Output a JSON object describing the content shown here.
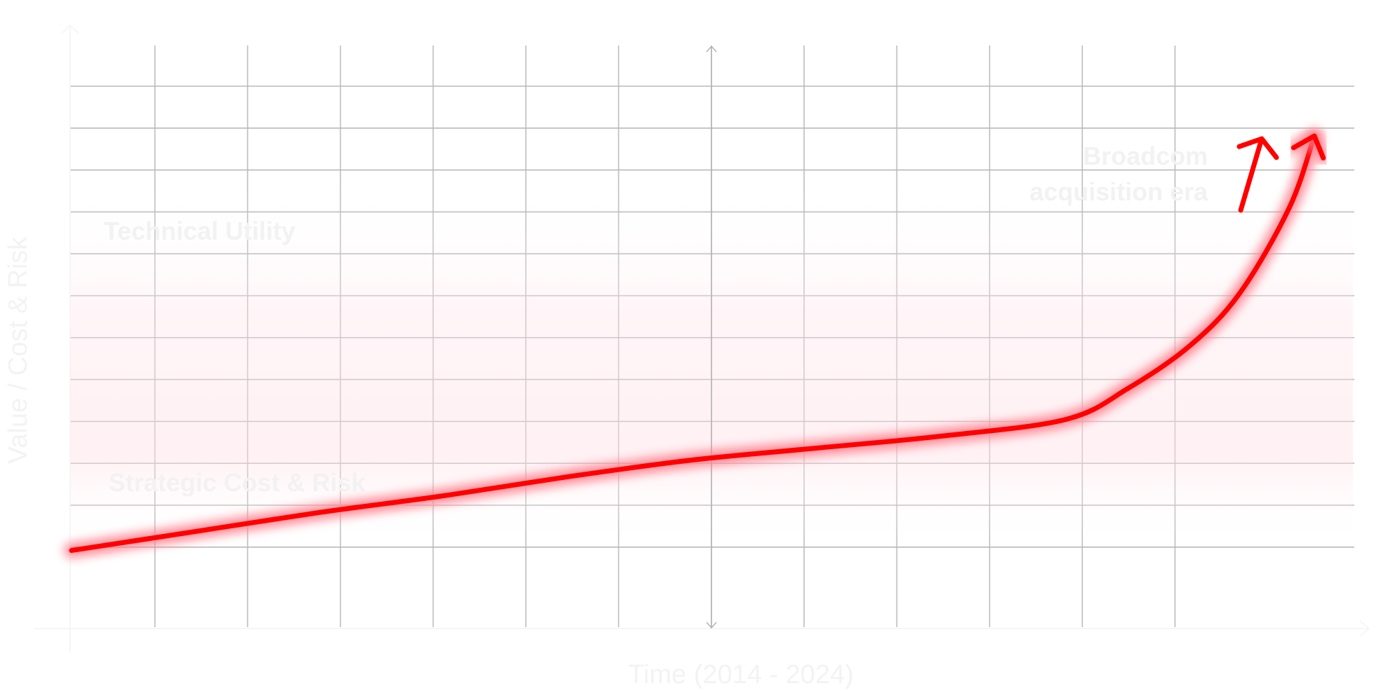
{
  "chart_data": {
    "type": "line",
    "xlabel": "Time (2014 - 2024)",
    "ylabel": "Value / Cost & Risk",
    "grid": true,
    "series": [
      {
        "x": [
          2014.0,
          2015.0,
          2016.0,
          2017.0,
          2018.0,
          2019.0,
          2020.0,
          2021.0,
          2022.0,
          2022.5,
          2023.0,
          2023.4,
          2023.8,
          2024.0
        ],
        "y": [
          1.6,
          2.4,
          3.2,
          3.9,
          4.7,
          5.4,
          5.9,
          6.4,
          7.1,
          8.4,
          10.2,
          12.4,
          16.0,
          19.0
        ]
      }
    ],
    "annotations": {
      "upper_zone": "Technical Utility",
      "lower_zone": "Strategic Cost & Risk",
      "event": [
        "Broadcom",
        "acquisition era"
      ]
    },
    "line_color": "#ff0000",
    "glow_color": "#ff7a88"
  }
}
